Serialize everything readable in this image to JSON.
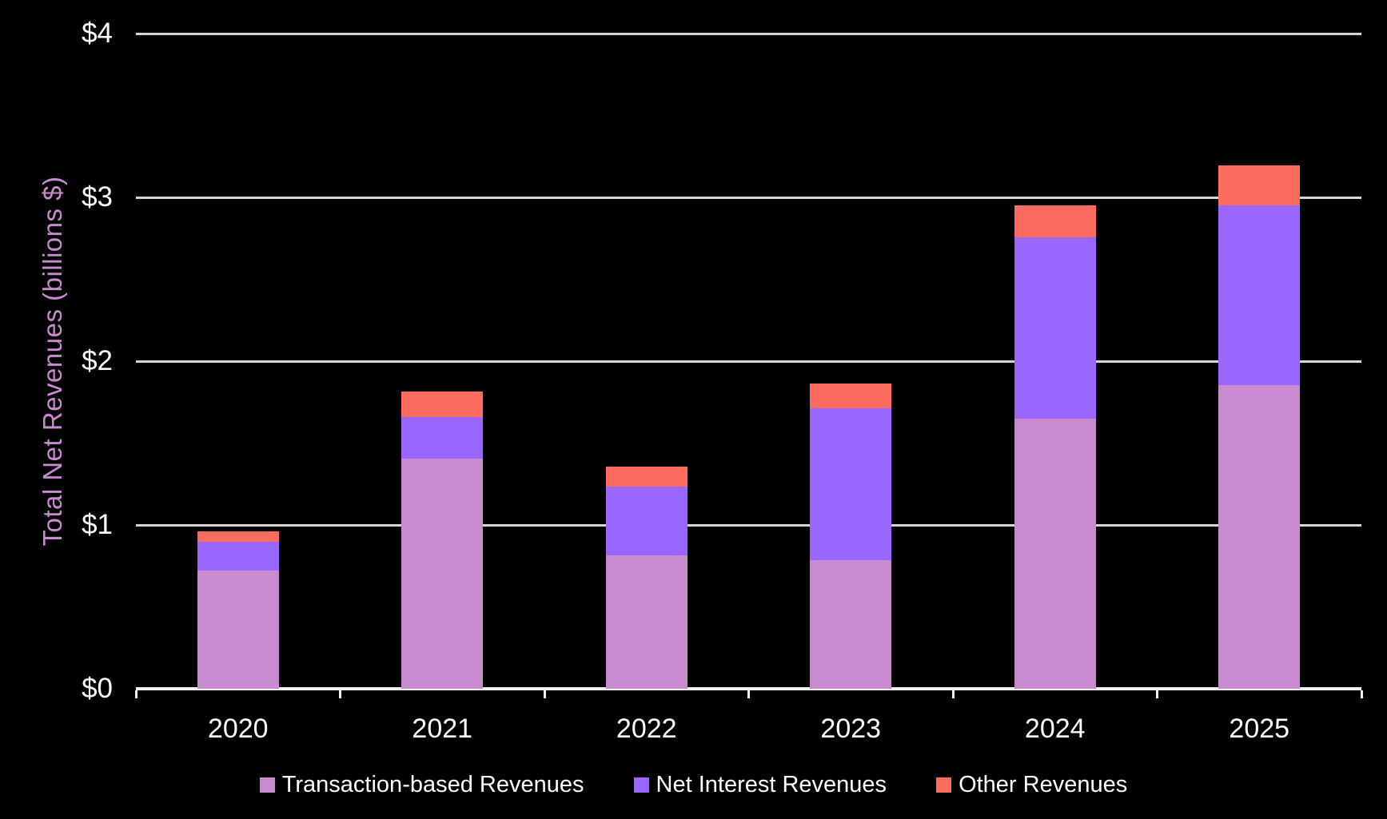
{
  "chart_data": {
    "type": "bar",
    "stacked": true,
    "categories": [
      "2020",
      "2021",
      "2022",
      "2023",
      "2024",
      "2025"
    ],
    "series": [
      {
        "name": "Transaction-based Revenues",
        "color": "#C98BCF",
        "values": [
          0.72,
          1.403,
          0.814,
          0.785,
          1.647,
          1.853
        ]
      },
      {
        "name": "Net Interest Revenues",
        "color": "#9966FF",
        "values": [
          0.177,
          0.257,
          0.422,
          0.929,
          1.109,
          1.1
        ]
      },
      {
        "name": "Other Revenues",
        "color": "#FC6D60",
        "values": [
          0.062,
          0.155,
          0.122,
          0.151,
          0.195,
          0.24
        ]
      }
    ],
    "title": "",
    "xlabel": "",
    "ylabel": "Total Net Revenues (billions $)",
    "ylim": [
      0,
      4
    ],
    "y_ticks": [
      {
        "value": 0,
        "label": "$0"
      },
      {
        "value": 1,
        "label": "$1"
      },
      {
        "value": 2,
        "label": "$2"
      },
      {
        "value": 3,
        "label": "$3"
      },
      {
        "value": 4,
        "label": "$4"
      }
    ],
    "grid": true,
    "legend_position": "bottom",
    "colors": {
      "background": "#000000",
      "gridline": "#D6D6D6",
      "axis_line": "#F0F0F0",
      "tick_text": "#FFFFFF",
      "ylabel_text": "#C98BCF"
    }
  }
}
